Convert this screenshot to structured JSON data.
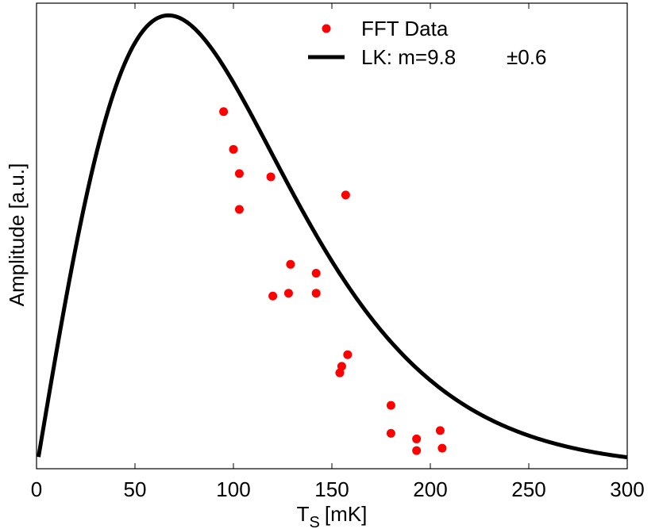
{
  "chart_data": {
    "type": "scatter",
    "title": "",
    "xlabel": {
      "main": "T",
      "subscript": "S",
      "unit": "[mK]"
    },
    "ylabel": "Amplitude [a.u.]",
    "xlim": [
      0,
      300
    ],
    "ylim": [
      0,
      1.0
    ],
    "xticks": [
      0,
      50,
      100,
      150,
      200,
      250,
      300
    ],
    "yticks_shown": false,
    "grid": false,
    "legend_position": "top-center",
    "series": [
      {
        "name": "FFT Data",
        "kind": "points",
        "color": "#ff0000",
        "points": [
          [
            95,
            0.767
          ],
          [
            100,
            0.686
          ],
          [
            103,
            0.634
          ],
          [
            103,
            0.557
          ],
          [
            119,
            0.627
          ],
          [
            157,
            0.588
          ],
          [
            120,
            0.371
          ],
          [
            128,
            0.377
          ],
          [
            129,
            0.439
          ],
          [
            142,
            0.377
          ],
          [
            142,
            0.42
          ],
          [
            158,
            0.245
          ],
          [
            155,
            0.22
          ],
          [
            154,
            0.206
          ],
          [
            180,
            0.136
          ],
          [
            180,
            0.076
          ],
          [
            193,
            0.064
          ],
          [
            193,
            0.039
          ],
          [
            205,
            0.082
          ],
          [
            206,
            0.044
          ]
        ]
      },
      {
        "name": "LK: m=9.8",
        "name_suffix": "±0.6",
        "kind": "line",
        "color": "#000000",
        "model": "lifshitz-kosevich",
        "peak_x": 56,
        "peak_y": 0.95
      }
    ]
  }
}
